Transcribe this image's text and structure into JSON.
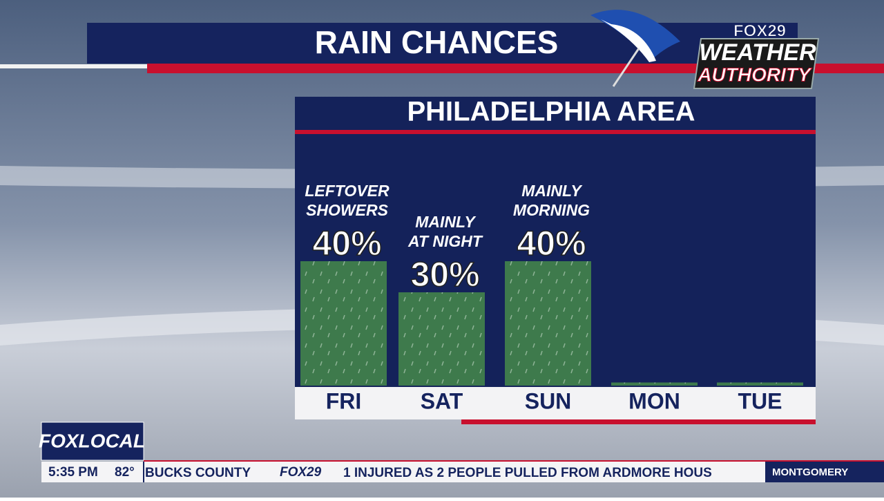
{
  "header": {
    "title": "RAIN CHANCES"
  },
  "logo": {
    "brand": "FOX29",
    "line1": "WEATHER",
    "line2": "AUTHORITY"
  },
  "chart_data": {
    "type": "bar",
    "title": "PHILADELPHIA AREA",
    "categories": [
      "FRI",
      "SAT",
      "SUN",
      "MON",
      "TUE"
    ],
    "values": [
      40,
      30,
      40,
      1,
      1
    ],
    "value_labels": [
      "40%",
      "30%",
      "40%",
      null,
      null
    ],
    "annotations": [
      [
        "LEFTOVER",
        "SHOWERS"
      ],
      [
        "MAINLY",
        "AT NIGHT"
      ],
      [
        "MAINLY",
        "MORNING"
      ],
      null,
      null
    ],
    "color": "#3e7a4c"
  },
  "lower_third": {
    "station": "FOXLOCAL",
    "time": "5:35 PM",
    "temperature": "82°"
  },
  "ticker": {
    "items": [
      "BUCKS COUNTY",
      "FOX29",
      "1 INJURED AS 2 PEOPLE PULLED FROM ARDMORE HOUS"
    ],
    "next": "MONTGOMERY"
  }
}
